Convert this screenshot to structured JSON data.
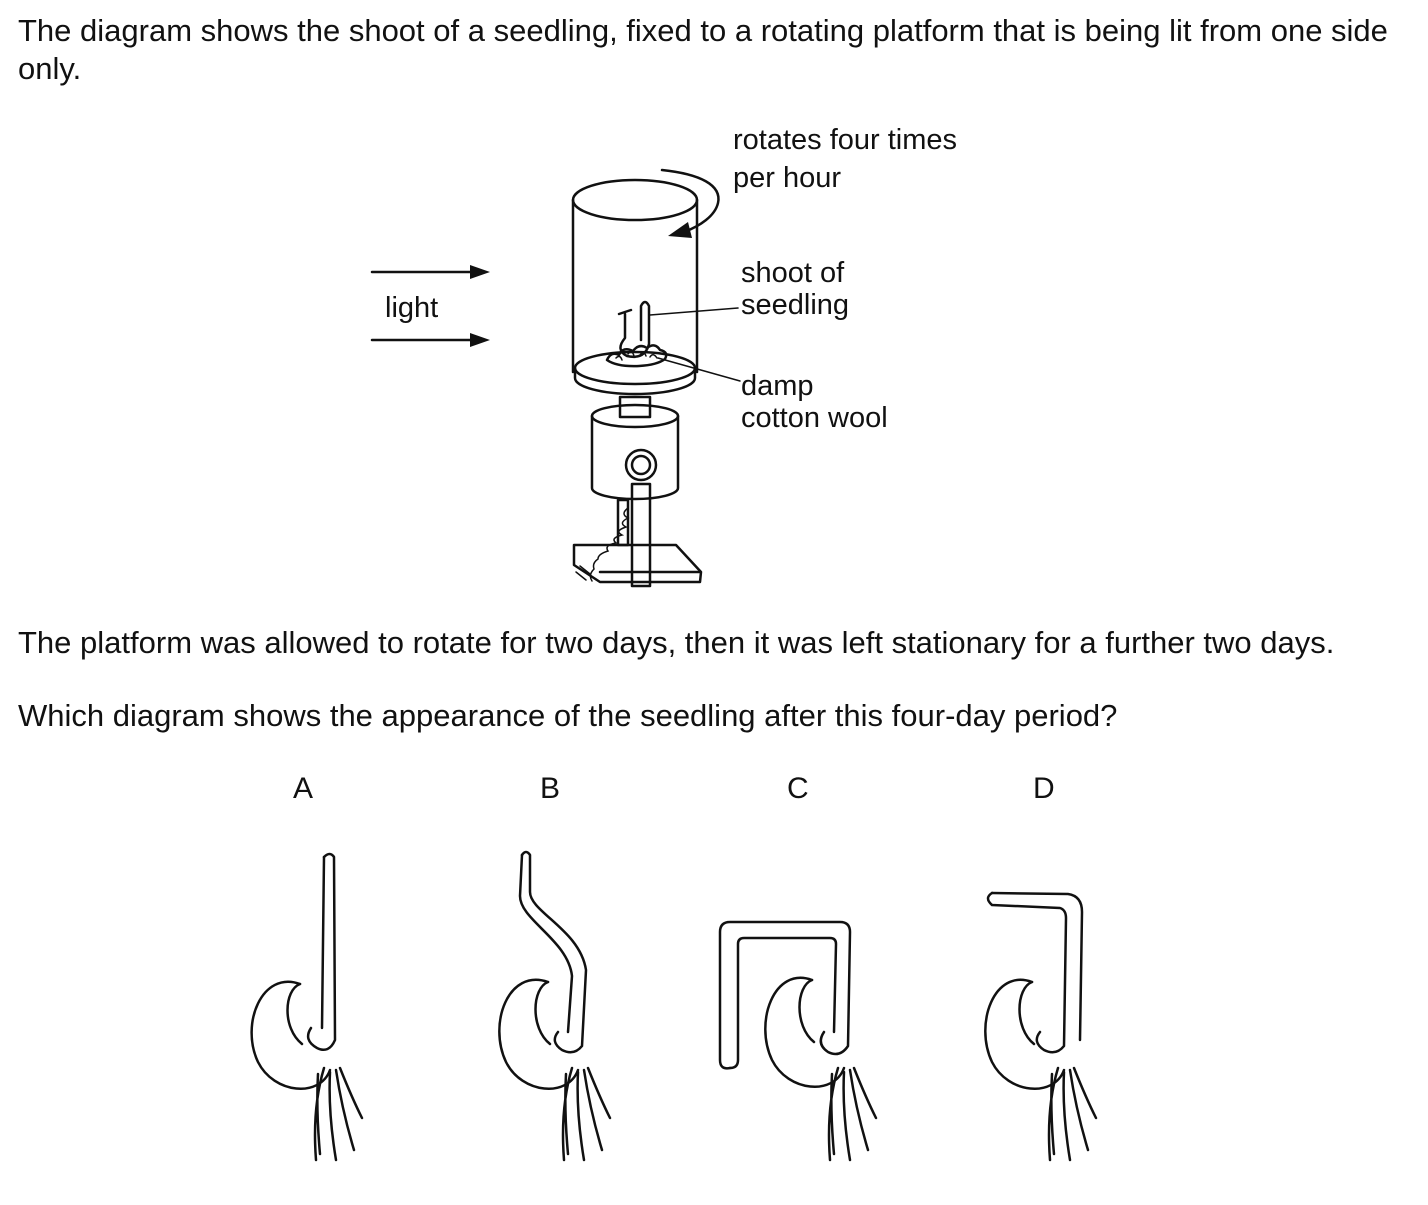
{
  "question": {
    "intro": "The diagram shows the shoot of a seedling, fixed to a rotating platform that is being lit from one side only.",
    "statement": "The platform was allowed to rotate for two days, then it was left stationary for a further two days.",
    "prompt": "Which diagram shows the appearance of the seedling after this four-day period?"
  },
  "apparatus_labels": {
    "rotation_line1": "rotates four times",
    "rotation_line2": "per hour",
    "light": "light",
    "shoot_line1": "shoot of",
    "shoot_line2": "seedling",
    "wool_line1": "damp",
    "wool_line2": "cotton wool"
  },
  "options": [
    {
      "letter": "A",
      "icon": "seedling-tall-upright-icon"
    },
    {
      "letter": "B",
      "icon": "seedling-s-curve-upright-icon"
    },
    {
      "letter": "C",
      "icon": "seedling-hooked-down-left-icon"
    },
    {
      "letter": "D",
      "icon": "seedling-hooked-left-icon"
    }
  ]
}
